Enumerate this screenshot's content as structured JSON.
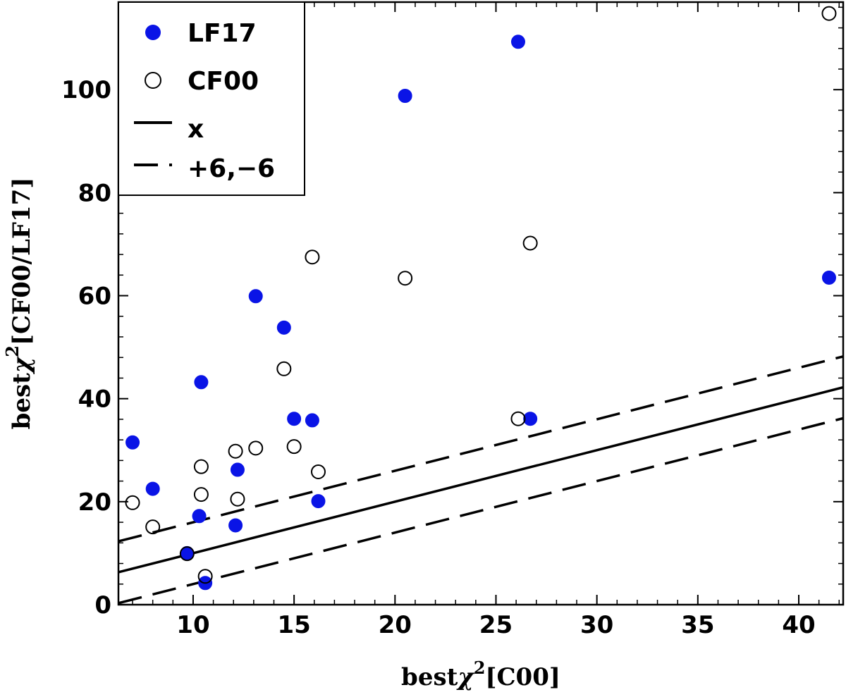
{
  "chart_data": {
    "type": "scatter",
    "xlabel_prefix": "best",
    "xlabel_symbol": "χ",
    "xlabel_sup": "2",
    "xlabel_suffix": "[C00]",
    "ylabel_prefix": "best",
    "ylabel_symbol": "χ",
    "ylabel_sup": "2",
    "ylabel_suffix": "[CF00/LF17]",
    "xlim": [
      6.3,
      42.2
    ],
    "ylim": [
      0,
      117
    ],
    "xticks": [
      10,
      15,
      20,
      25,
      30,
      35,
      40
    ],
    "yticks": [
      0,
      20,
      40,
      60,
      80,
      100
    ],
    "series": [
      {
        "name": "LF17",
        "marker": "filled-circle",
        "color": "#0a14e6",
        "points": [
          [
            7.0,
            31.5
          ],
          [
            8.0,
            22.5
          ],
          [
            9.7,
            10.0
          ],
          [
            10.3,
            17.2
          ],
          [
            10.4,
            43.2
          ],
          [
            10.6,
            4.2
          ],
          [
            12.1,
            15.4
          ],
          [
            12.2,
            26.2
          ],
          [
            13.1,
            59.9
          ],
          [
            14.5,
            53.8
          ],
          [
            15.0,
            36.1
          ],
          [
            15.9,
            35.8
          ],
          [
            16.2,
            20.1
          ],
          [
            20.5,
            98.8
          ],
          [
            26.1,
            109.3
          ],
          [
            26.7,
            36.1
          ],
          [
            41.5,
            63.5
          ]
        ]
      },
      {
        "name": "CF00",
        "marker": "open-circle",
        "color": "#000000",
        "points": [
          [
            7.0,
            19.8
          ],
          [
            8.0,
            15.1
          ],
          [
            9.7,
            9.9
          ],
          [
            10.4,
            26.8
          ],
          [
            10.4,
            21.4
          ],
          [
            10.6,
            5.5
          ],
          [
            12.1,
            29.8
          ],
          [
            12.2,
            20.5
          ],
          [
            13.1,
            30.4
          ],
          [
            14.5,
            45.8
          ],
          [
            15.0,
            30.7
          ],
          [
            15.9,
            67.5
          ],
          [
            16.2,
            25.8
          ],
          [
            20.5,
            63.4
          ],
          [
            26.1,
            36.1
          ],
          [
            26.7,
            70.2
          ],
          [
            41.5,
            114.8
          ]
        ]
      }
    ],
    "lines": [
      {
        "name": "x",
        "style": "solid",
        "slope": 1,
        "intercept": 0
      },
      {
        "name": "+6,−6",
        "style": "dashed",
        "slope": 1,
        "intercept": 6
      },
      {
        "name": "+6,−6",
        "style": "dashed",
        "slope": 1,
        "intercept": -6
      }
    ],
    "legend": {
      "position": "top-left",
      "entries": [
        {
          "label": "LF17",
          "kind": "filled-circle"
        },
        {
          "label": "CF00",
          "kind": "open-circle"
        },
        {
          "label": "x",
          "kind": "solid-line"
        },
        {
          "label": "+6,−6",
          "kind": "dashed-line"
        }
      ]
    }
  }
}
